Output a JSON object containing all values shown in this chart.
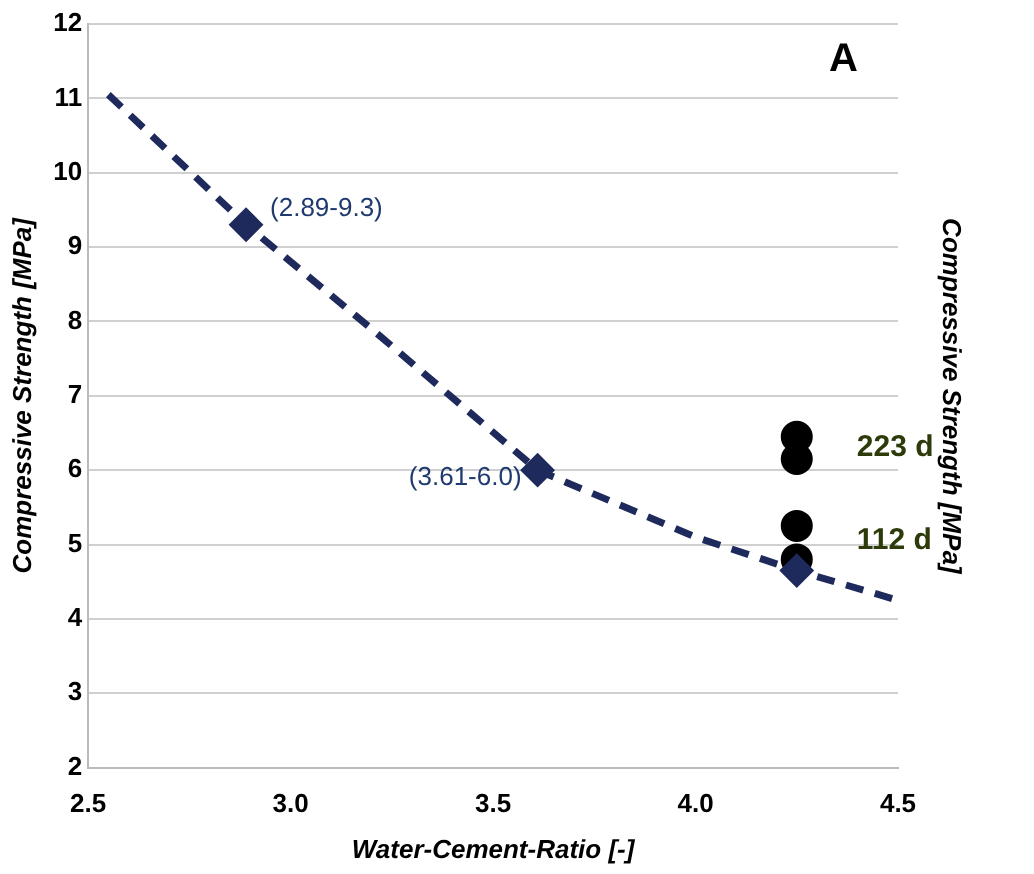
{
  "chart_data": {
    "type": "scatter",
    "xlabel": "Water-Cement-Ratio [-]",
    "ylabel": "Compressive Strength [MPa]",
    "y2label": "Compressive Strength [MPa]",
    "xlim": [
      2.5,
      4.5
    ],
    "xticks": [
      {
        "value": 2.5,
        "label": "2.5"
      },
      {
        "value": 3,
        "label": "3.0"
      },
      {
        "value": 3.5,
        "label": "3.5"
      },
      {
        "value": 4,
        "label": "4.0"
      },
      {
        "value": 4.5,
        "label": "4.5"
      }
    ],
    "ylim": [
      2,
      12
    ],
    "yticks": [
      2,
      3,
      4,
      5,
      6,
      7,
      8,
      9,
      10,
      11,
      12
    ],
    "grid": "y",
    "legend": false,
    "series": [
      {
        "type": "line",
        "color": "#1f2a5c",
        "line_style": "dashed",
        "marker": "none",
        "x": [
          2.55,
          2.89,
          3.2,
          3.61,
          4.0,
          4.25,
          4.5
        ],
        "values": [
          11.05,
          9.3,
          7.9,
          6.0,
          5.1,
          4.65,
          4.25
        ]
      },
      {
        "type": "scatter",
        "color": "#1f2a5c",
        "marker": "diamond",
        "x": [
          2.89,
          3.61,
          4.25
        ],
        "values": [
          9.3,
          6.0,
          4.65
        ]
      },
      {
        "color": "#000000",
        "marker": "circle",
        "x": [
          4.25,
          4.25,
          4.25,
          4.25
        ],
        "values": [
          6.45,
          6.15,
          5.25,
          4.8
        ]
      }
    ],
    "annotations": [
      {
        "text": "(2.89-9.3)",
        "x": 2.89,
        "y": 9.3
      },
      {
        "text": "(3.61-6.0)",
        "x": 3.61,
        "y": 6.0
      },
      {
        "text": "223 d",
        "x": 4.25,
        "y": 6.3
      },
      {
        "text": "112 d",
        "x": 4.25,
        "y": 5.05
      },
      "A"
    ]
  }
}
